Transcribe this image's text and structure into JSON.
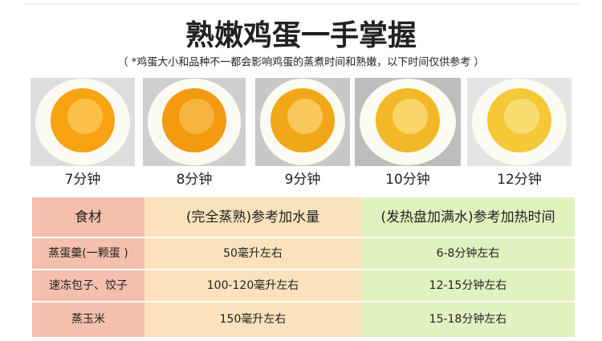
{
  "header": {
    "title": "熟嫩鸡蛋一手掌握",
    "subtitle": "（ *鸡蛋大小和品种不一都会影响鸡蛋的蒸煮时间和熟嫩，以下时间仅供参考 ）"
  },
  "eggs": [
    {
      "label": "7分钟"
    },
    {
      "label": "8分钟"
    },
    {
      "label": "9分钟"
    },
    {
      "label": "10分钟"
    },
    {
      "label": "12分钟"
    }
  ],
  "table": {
    "columns": [
      "食材",
      "(完全蒸熟)参考加水量",
      "(发热盘加满水)参考加热时间"
    ],
    "rows": [
      [
        "蒸蛋羹(一颗蛋 )",
        "50毫升左右",
        "6-8分钟左右"
      ],
      [
        "速冻包子、饺子",
        "100-120毫升左右",
        "12-15分钟左右"
      ],
      [
        "蒸玉米",
        "150毫升左右",
        "15-18分钟左右"
      ]
    ]
  }
}
